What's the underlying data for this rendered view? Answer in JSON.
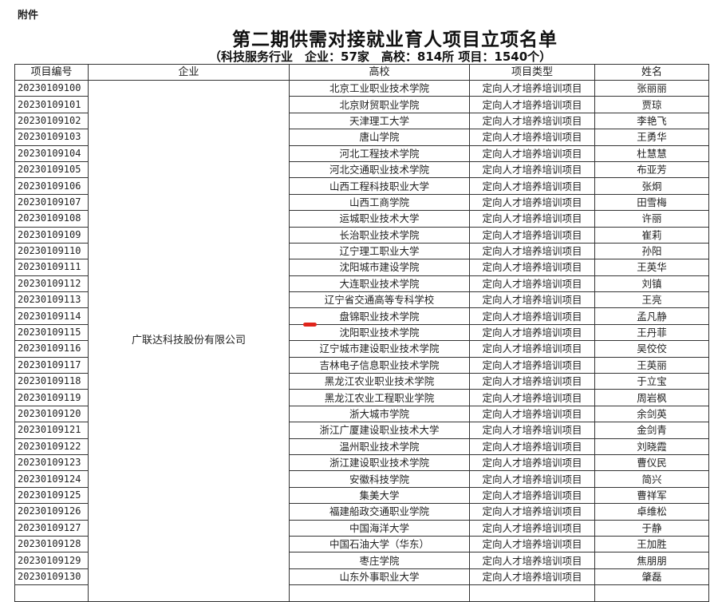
{
  "attachment_label": "附件",
  "title": "第二期供需对接就业育人项目立项名单",
  "subtitle": "（科技服务行业　企业：57家　高校：814所 项目：1540个）",
  "table": {
    "headers": [
      "项目编号",
      "企业",
      "高校",
      "项目类型",
      "姓名"
    ],
    "company": "广联达科技股份有限公司",
    "rows": [
      {
        "id": "20230109100",
        "school": "北京工业职业技术学院",
        "type": "定向人才培养培训项目",
        "name": "张丽丽"
      },
      {
        "id": "20230109101",
        "school": "北京财贸职业学院",
        "type": "定向人才培养培训项目",
        "name": "贾琼"
      },
      {
        "id": "20230109102",
        "school": "天津理工大学",
        "type": "定向人才培养培训项目",
        "name": "李艳飞"
      },
      {
        "id": "20230109103",
        "school": "唐山学院",
        "type": "定向人才培养培训项目",
        "name": "王勇华"
      },
      {
        "id": "20230109104",
        "school": "河北工程技术学院",
        "type": "定向人才培养培训项目",
        "name": "杜慧慧"
      },
      {
        "id": "20230109105",
        "school": "河北交通职业技术学院",
        "type": "定向人才培养培训项目",
        "name": "布亚芳"
      },
      {
        "id": "20230109106",
        "school": "山西工程科技职业大学",
        "type": "定向人才培养培训项目",
        "name": "张炯"
      },
      {
        "id": "20230109107",
        "school": "山西工商学院",
        "type": "定向人才培养培训项目",
        "name": "田雪梅"
      },
      {
        "id": "20230109108",
        "school": "运城职业技术大学",
        "type": "定向人才培养培训项目",
        "name": "许丽"
      },
      {
        "id": "20230109109",
        "school": "长治职业技术学院",
        "type": "定向人才培养培训项目",
        "name": "崔莉"
      },
      {
        "id": "20230109110",
        "school": "辽宁理工职业大学",
        "type": "定向人才培养培训项目",
        "name": "孙阳"
      },
      {
        "id": "20230109111",
        "school": "沈阳城市建设学院",
        "type": "定向人才培养培训项目",
        "name": "王英华"
      },
      {
        "id": "20230109112",
        "school": "大连职业技术学院",
        "type": "定向人才培养培训项目",
        "name": "刘镇"
      },
      {
        "id": "20230109113",
        "school": "辽宁省交通高等专科学校",
        "type": "定向人才培养培训项目",
        "name": "王亮"
      },
      {
        "id": "20230109114",
        "school": "盘锦职业技术学院",
        "type": "定向人才培养培训项目",
        "name": "孟凡静"
      },
      {
        "id": "20230109115",
        "school": "沈阳职业技术学院",
        "type": "定向人才培养培训项目",
        "name": "王丹菲"
      },
      {
        "id": "20230109116",
        "school": "辽宁城市建设职业技术学院",
        "type": "定向人才培养培训项目",
        "name": "吴佼佼"
      },
      {
        "id": "20230109117",
        "school": "吉林电子信息职业技术学院",
        "type": "定向人才培养培训项目",
        "name": "王英丽"
      },
      {
        "id": "20230109118",
        "school": "黑龙江农业职业技术学院",
        "type": "定向人才培养培训项目",
        "name": "于立宝"
      },
      {
        "id": "20230109119",
        "school": "黑龙江农业工程职业学院",
        "type": "定向人才培养培训项目",
        "name": "周岩枫"
      },
      {
        "id": "20230109120",
        "school": "浙大城市学院",
        "type": "定向人才培养培训项目",
        "name": "余剑英"
      },
      {
        "id": "20230109121",
        "school": "浙江广厦建设职业技术大学",
        "type": "定向人才培养培训项目",
        "name": "金剑青"
      },
      {
        "id": "20230109122",
        "school": "温州职业技术学院",
        "type": "定向人才培养培训项目",
        "name": "刘晓霞"
      },
      {
        "id": "20230109123",
        "school": "浙江建设职业技术学院",
        "type": "定向人才培养培训项目",
        "name": "曹仪民"
      },
      {
        "id": "20230109124",
        "school": "安徽科技学院",
        "type": "定向人才培养培训项目",
        "name": "简兴"
      },
      {
        "id": "20230109125",
        "school": "集美大学",
        "type": "定向人才培养培训项目",
        "name": "曹祥军"
      },
      {
        "id": "20230109126",
        "school": "福建船政交通职业学院",
        "type": "定向人才培养培训项目",
        "name": "卓维松"
      },
      {
        "id": "20230109127",
        "school": "中国海洋大学",
        "type": "定向人才培养培训项目",
        "name": "于静"
      },
      {
        "id": "20230109128",
        "school": "中国石油大学（华东）",
        "type": "定向人才培养培训项目",
        "name": "王加胜"
      },
      {
        "id": "20230109129",
        "school": "枣庄学院",
        "type": "定向人才培养培训项目",
        "name": "焦朋朋"
      },
      {
        "id": "20230109130",
        "school": "山东外事职业大学",
        "type": "定向人才培养培训项目",
        "name": "肇磊"
      }
    ]
  },
  "colors": {
    "annotation_mark": "#e0241b",
    "border": "#333333"
  }
}
